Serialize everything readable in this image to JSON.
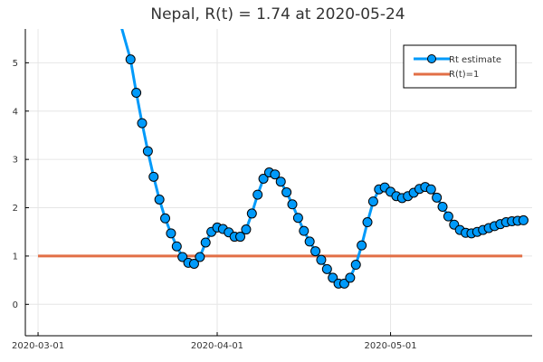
{
  "chart_data": {
    "type": "line",
    "title": "Nepal, R(t) = 1.74 at 2020-05-24",
    "xlabel": "",
    "ylabel": "",
    "ylim": [
      -0.65,
      5.7
    ],
    "yticks": [
      0,
      1,
      2,
      3,
      4,
      5
    ],
    "x_start_date": "2020-02-29",
    "xlim_days": [
      -1.2,
      86.5
    ],
    "xticks": [
      {
        "day": 1,
        "label": "2020-03-01"
      },
      {
        "day": 32,
        "label": "2020-04-01"
      },
      {
        "day": 62,
        "label": "2020-05-01"
      }
    ],
    "grid": true,
    "legend_position": "top-right",
    "colors": {
      "rt_line": "#009AFA",
      "rt_marker_edge": "#000000",
      "reference_line": "#E26F46"
    },
    "series": [
      {
        "name": "Rt estimate",
        "style": "line-with-markers",
        "line_start": {
          "day": 15.4,
          "value": 5.75
        },
        "x_days": [
          17,
          18,
          19,
          20,
          21,
          22,
          23,
          24,
          25,
          26,
          27,
          28,
          29,
          30,
          31,
          32,
          33,
          34,
          35,
          36,
          37,
          38,
          39,
          40,
          41,
          42,
          43,
          44,
          45,
          46,
          47,
          48,
          49,
          50,
          51,
          52,
          53,
          54,
          55,
          56,
          57,
          58,
          59,
          60,
          61,
          62,
          63,
          64,
          65,
          66,
          67,
          68,
          69,
          70,
          71,
          72,
          73,
          74,
          75,
          76,
          77,
          78,
          79,
          80,
          81,
          82,
          83,
          84,
          85
        ],
        "values": [
          5.07,
          4.38,
          3.75,
          3.17,
          2.64,
          2.17,
          1.78,
          1.47,
          1.2,
          0.98,
          0.86,
          0.84,
          0.98,
          1.28,
          1.5,
          1.59,
          1.56,
          1.49,
          1.4,
          1.4,
          1.55,
          1.88,
          2.27,
          2.6,
          2.73,
          2.69,
          2.54,
          2.32,
          2.07,
          1.79,
          1.52,
          1.3,
          1.1,
          0.92,
          0.73,
          0.55,
          0.43,
          0.43,
          0.55,
          0.82,
          1.22,
          1.7,
          2.13,
          2.38,
          2.42,
          2.33,
          2.24,
          2.2,
          2.24,
          2.31,
          2.39,
          2.43,
          2.38,
          2.21,
          2.02,
          1.82,
          1.65,
          1.54,
          1.48,
          1.47,
          1.5,
          1.54,
          1.58,
          1.62,
          1.66,
          1.7,
          1.72,
          1.73,
          1.74
        ]
      },
      {
        "name": "R(t)=1",
        "style": "line",
        "x_days": [
          1,
          84.8
        ],
        "values": [
          1,
          1
        ]
      }
    ]
  }
}
